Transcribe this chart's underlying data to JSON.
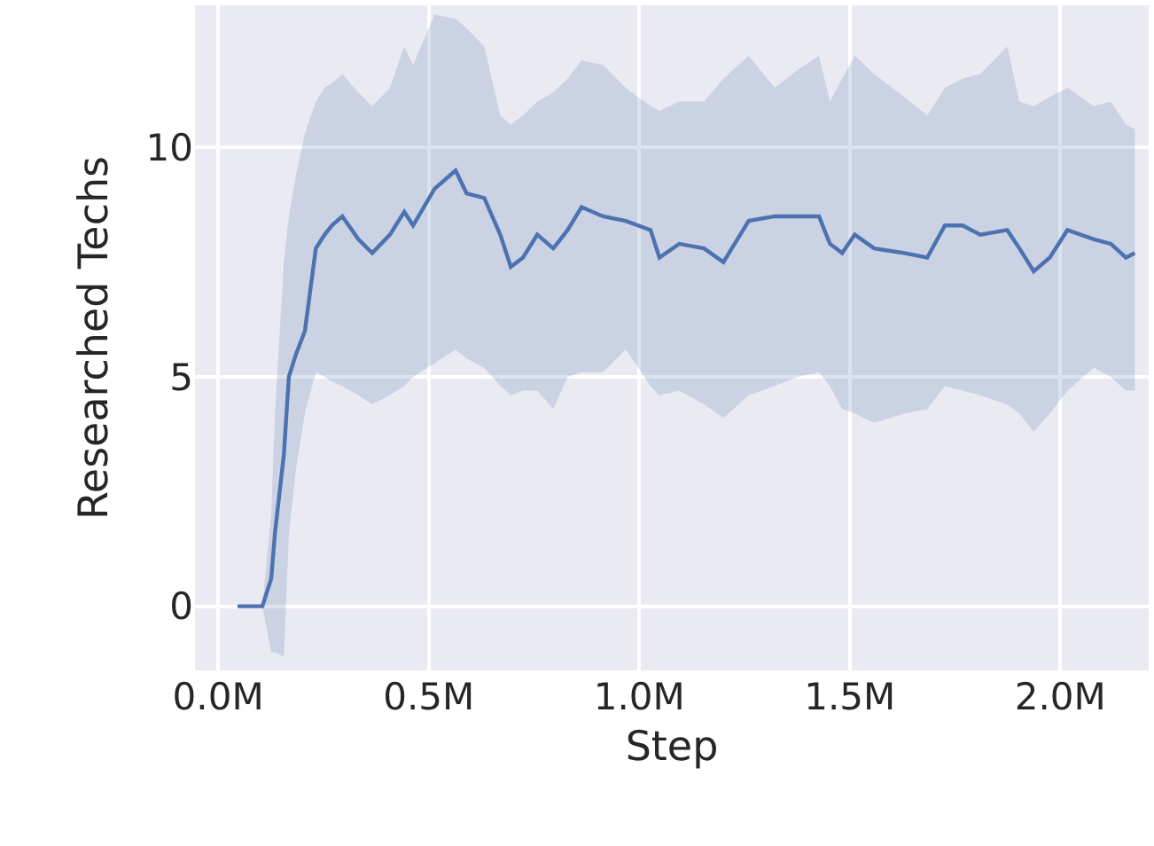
{
  "chart_data": {
    "type": "line",
    "xlabel": "Step",
    "ylabel": "Researched Techs",
    "x": [
      0.046,
      0.105,
      0.126,
      0.135,
      0.156,
      0.168,
      0.185,
      0.206,
      0.232,
      0.253,
      0.27,
      0.295,
      0.333,
      0.366,
      0.408,
      0.442,
      0.463,
      0.514,
      0.564,
      0.59,
      0.632,
      0.67,
      0.695,
      0.724,
      0.758,
      0.796,
      0.83,
      0.863,
      0.914,
      0.968,
      1.027,
      1.048,
      1.095,
      1.154,
      1.2,
      1.26,
      1.322,
      1.377,
      1.427,
      1.453,
      1.482,
      1.512,
      1.558,
      1.63,
      1.684,
      1.726,
      1.768,
      1.81,
      1.874,
      1.903,
      1.937,
      1.975,
      2.017,
      2.08,
      2.12,
      2.156,
      2.177
    ],
    "series": [
      {
        "color": "#4c72b0",
        "values": [
          0,
          0,
          0.6,
          1.6,
          3.3,
          5.0,
          5.5,
          6.0,
          7.8,
          8.1,
          8.3,
          8.5,
          8.0,
          7.7,
          8.1,
          8.6,
          8.3,
          9.1,
          9.5,
          9.0,
          8.9,
          8.1,
          7.4,
          7.6,
          8.1,
          7.8,
          8.2,
          8.7,
          8.5,
          8.4,
          8.2,
          7.6,
          7.9,
          7.8,
          7.5,
          8.4,
          8.5,
          8.5,
          8.5,
          7.9,
          7.7,
          8.1,
          7.8,
          7.7,
          7.6,
          8.3,
          8.3,
          8.1,
          8.2,
          7.8,
          7.3,
          7.6,
          8.2,
          8.0,
          7.9,
          7.6,
          7.7
        ],
        "upper": [
          0,
          0,
          2.0,
          4.2,
          7.5,
          8.5,
          9.4,
          10.3,
          11.0,
          11.3,
          11.4,
          11.6,
          11.2,
          10.9,
          11.3,
          12.2,
          11.8,
          12.9,
          12.8,
          12.6,
          12.2,
          10.7,
          10.5,
          10.7,
          11.0,
          11.2,
          11.5,
          11.9,
          11.8,
          11.3,
          10.9,
          10.8,
          11.0,
          11.0,
          11.5,
          12.0,
          11.3,
          11.7,
          12.0,
          11.0,
          11.5,
          12.0,
          11.6,
          11.1,
          10.7,
          11.3,
          11.5,
          11.6,
          12.2,
          11.0,
          10.9,
          11.1,
          11.3,
          10.9,
          11.0,
          10.5,
          10.4
        ],
        "lower": [
          0,
          0,
          -1.0,
          -1.0,
          -1.1,
          1.6,
          3.0,
          4.2,
          5.1,
          5.0,
          4.9,
          4.8,
          4.6,
          4.4,
          4.6,
          4.8,
          5.0,
          5.3,
          5.6,
          5.4,
          5.2,
          4.8,
          4.6,
          4.7,
          4.7,
          4.3,
          5.0,
          5.1,
          5.1,
          5.6,
          4.8,
          4.6,
          4.7,
          4.4,
          4.1,
          4.6,
          4.8,
          5.0,
          5.1,
          4.8,
          4.3,
          4.2,
          4.0,
          4.2,
          4.3,
          4.8,
          4.7,
          4.6,
          4.4,
          4.2,
          3.8,
          4.2,
          4.7,
          5.2,
          5.0,
          4.7,
          4.7
        ]
      }
    ],
    "xlim": [
      -0.055,
      2.21
    ],
    "ylim": [
      -1.4,
      13.1
    ],
    "xticks": [
      {
        "value": 0,
        "label": "0.0M"
      },
      {
        "value": 0.5,
        "label": "0.5M"
      },
      {
        "value": 1.0,
        "label": "1.0M"
      },
      {
        "value": 1.5,
        "label": "1.5M"
      },
      {
        "value": 2.0,
        "label": "2.0M"
      }
    ],
    "yticks": [
      0,
      5,
      10
    ],
    "grid": true,
    "marker": "none",
    "line_style": "solid"
  }
}
